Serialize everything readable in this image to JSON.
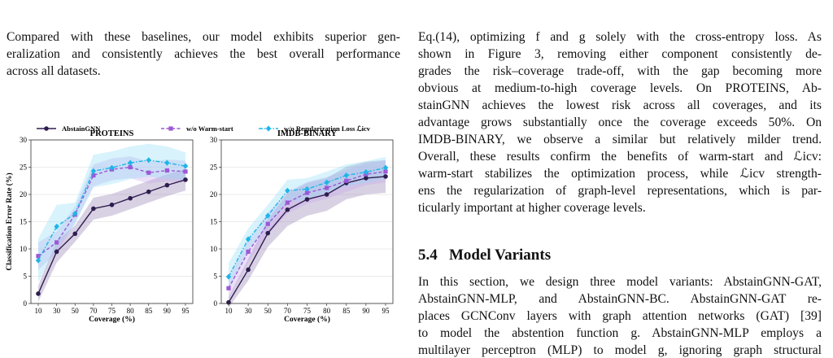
{
  "text": {
    "left": [
      "Compared with these baselines, our model exhibits superior gen-",
      "eralization and consistently achieves the best overall performance",
      "across all datasets."
    ],
    "right": [
      "Eq.(14), optimizing f and g solely with the cross-entropy loss. As",
      "shown in Figure 3, removing either component consistently de-",
      "grades the risk–coverage trade-off, with the gap becoming more",
      "obvious at medium-to-high coverage levels. On PROTEINS, Ab-",
      "stainGNN achieves the lowest risk across all coverages, and its",
      "advantage grows substantially once the coverage exceeds 50%. On",
      "IMDB-BINARY, we observe a similar but relatively milder trend.",
      "Overall, these results confirm the benefits of warm-start and ℒicv:",
      "warm-start stabilizes the optimization process, while ℒicv strength-",
      "ens the regularization of graph-level representations, which is par-",
      "ticularly important at higher coverage levels."
    ],
    "heading": {
      "number": "5.4",
      "title": "Model Variants"
    },
    "right2": [
      "In this section, we design three model variants: AbstainGNN-GAT,",
      "AbstainGNN-MLP, and AbstainGNN-BC. AbstainGNN-GAT re-",
      "places GCNConv layers with graph attention networks (GAT) [39]",
      "to model the abstention function g. AbstainGNN-MLP employs a",
      "multilayer perceptron (MLP) to model g, ignoring graph structural"
    ]
  },
  "chart_data": [
    {
      "type": "line",
      "title": "PROTEINS",
      "xlabel": "Coverage (%)",
      "ylabel": "Classification Error Rate (%)",
      "categories": [
        "10",
        "30",
        "50",
        "70",
        "75",
        "80",
        "85",
        "90",
        "95"
      ],
      "ylim": [
        0,
        30
      ],
      "yticks": [
        0,
        5,
        10,
        15,
        20,
        25,
        30
      ],
      "grid": true,
      "series": [
        {
          "name": "AbstainGNN",
          "color": "#2e1d4f",
          "band_color": "#8e7bb0",
          "marker": "circle",
          "dash": "solid",
          "values": [
            1.8,
            9.5,
            12.8,
            17.4,
            18.1,
            19.3,
            20.5,
            21.7,
            22.7
          ],
          "errors": [
            1.5,
            2,
            1.5,
            2,
            2,
            2,
            2,
            2,
            2
          ]
        },
        {
          "name": "w/o Warm-start",
          "color": "#9b59d6",
          "band_color": "#c9a2ea",
          "marker": "square",
          "dash": "dashed",
          "values": [
            8.7,
            11.2,
            16.3,
            23.5,
            24.6,
            25.0,
            24.0,
            24.4,
            24.2
          ],
          "errors": [
            2.5,
            2,
            1.5,
            2,
            2,
            2,
            2,
            2,
            2
          ]
        },
        {
          "name": "w/o Regularization Loss ℒicv",
          "color": "#1fb5e8",
          "band_color": "#8fdcf5",
          "marker": "diamond",
          "dash": "dashdot",
          "values": [
            7.9,
            14.1,
            16.5,
            24.3,
            24.9,
            25.8,
            26.3,
            25.8,
            25.2
          ],
          "errors": [
            4,
            4,
            2,
            3,
            3,
            3,
            3,
            3,
            2.5
          ]
        }
      ]
    },
    {
      "type": "line",
      "title": "IMDB-BINARY",
      "xlabel": "Coverage (%)",
      "categories": [
        "10",
        "30",
        "50",
        "70",
        "75",
        "80",
        "85",
        "90",
        "95"
      ],
      "ylim": [
        0,
        30
      ],
      "yticks": [
        0,
        5,
        10,
        15,
        20,
        25,
        30
      ],
      "grid": true,
      "series": [
        {
          "color": "#2e1d4f",
          "band_color": "#8e7bb0",
          "marker": "circle",
          "dash": "solid",
          "values": [
            0.2,
            6.2,
            12.9,
            17.2,
            19.1,
            20.0,
            22.1,
            23.0,
            23.3
          ],
          "errors": [
            1,
            2,
            2.5,
            3,
            3,
            3,
            3,
            3,
            3
          ]
        },
        {
          "color": "#9b59d6",
          "band_color": "#c9a2ea",
          "marker": "square",
          "dash": "dashed",
          "values": [
            2.8,
            9.5,
            14.6,
            18.5,
            20.3,
            21.2,
            22.5,
            23.7,
            24.2
          ],
          "errors": [
            2,
            2,
            2,
            2,
            2,
            2,
            2,
            2,
            2
          ]
        },
        {
          "color": "#1fb5e8",
          "band_color": "#8fdcf5",
          "marker": "diamond",
          "dash": "dashdot",
          "values": [
            4.9,
            11.8,
            16.1,
            20.7,
            21.0,
            22.2,
            23.5,
            24.1,
            24.9
          ],
          "errors": [
            2.5,
            2,
            2,
            2,
            2,
            2,
            2,
            2,
            2
          ]
        }
      ]
    }
  ]
}
